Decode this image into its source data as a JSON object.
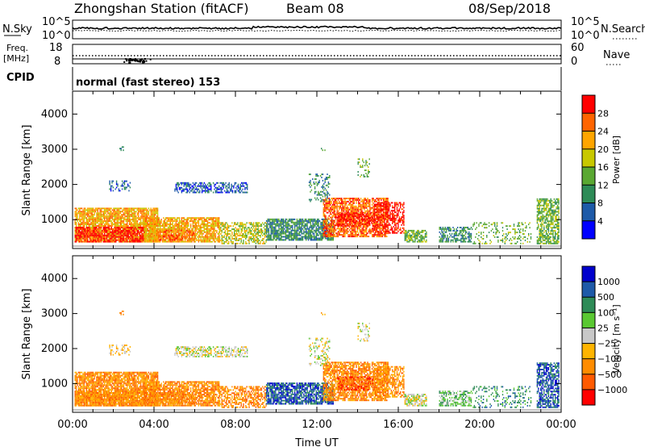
{
  "header": {
    "station": "Zhongshan Station (fitACF)",
    "beam": "Beam 08",
    "date": "08/Sep/2018"
  },
  "panels": {
    "nsky": {
      "label": "N.Sky",
      "ticks_left": [
        "10^5",
        "10^0"
      ],
      "ticks_right": [
        "10^5",
        "10^0"
      ],
      "right_label": "N.Search"
    },
    "freq": {
      "label": "Freq.",
      "unit": "[MHz]",
      "ticks_left": [
        "18",
        "8"
      ],
      "ticks_right": [
        "60",
        "0"
      ],
      "right_label": "Nave"
    },
    "cpid": {
      "label": "CPID",
      "value": "normal (fast stereo) 153"
    }
  },
  "colors": {
    "power": [
      "#0000ff",
      "#1e5aa8",
      "#2e8b57",
      "#5aa832",
      "#c8c800",
      "#ffa500",
      "#ff6400",
      "#ff0000"
    ],
    "velocity": [
      "#ff0000",
      "#ff5a00",
      "#ff8c00",
      "#ffb400",
      "#c8c8c8",
      "#5ac832",
      "#2e8b57",
      "#1e5aa8",
      "#0000cc"
    ]
  },
  "chart_data": [
    {
      "type": "heatmap",
      "name": "power",
      "ylabel": "Slant Range [km]",
      "yticks": [
        1000,
        2000,
        3000,
        4000
      ],
      "ylim": [
        180,
        4650
      ],
      "xlim": [
        0,
        24
      ],
      "colorbar": {
        "label": "Power [dB]",
        "ticks": [
          "28",
          "24",
          "20",
          "16",
          "12",
          "8",
          "4"
        ],
        "range": [
          0,
          32
        ]
      },
      "seed": 7
    },
    {
      "type": "heatmap",
      "name": "velocity",
      "ylabel": "Slant Range [km]",
      "xlabel": "Time UT",
      "yticks": [
        1000,
        2000,
        3000,
        4000
      ],
      "ylim": [
        180,
        4650
      ],
      "xlim": [
        0,
        24
      ],
      "xticks": [
        "00:00",
        "04:00",
        "08:00",
        "12:00",
        "16:00",
        "20:00",
        "00:00"
      ],
      "colorbar": {
        "label": "Velocity [m s⁻¹]",
        "ticks": [
          "1000",
          "500",
          "100",
          "25",
          "−25",
          "−100",
          "−500",
          "−1000"
        ]
      },
      "seed": 7
    }
  ]
}
